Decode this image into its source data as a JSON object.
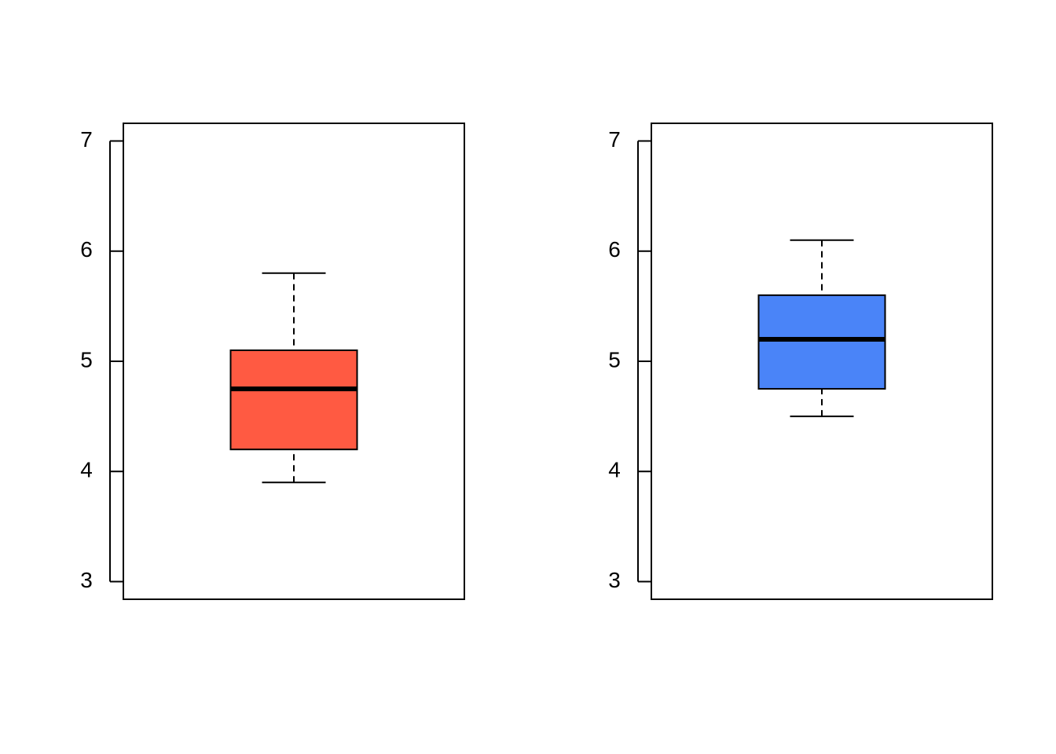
{
  "chart_data": [
    {
      "type": "box",
      "color": "#ff5a42",
      "box": {
        "min": 3.9,
        "q1": 4.2,
        "median": 4.75,
        "q3": 5.1,
        "max": 5.8
      },
      "ylim": [
        2.84,
        7.16
      ],
      "yticks": [
        3,
        4,
        5,
        6,
        7
      ]
    },
    {
      "type": "box",
      "color": "#4a84f8",
      "box": {
        "min": 4.5,
        "q1": 4.75,
        "median": 5.2,
        "q3": 5.6,
        "max": 6.1
      },
      "ylim": [
        2.84,
        7.16
      ],
      "yticks": [
        3,
        4,
        5,
        6,
        7
      ]
    }
  ]
}
